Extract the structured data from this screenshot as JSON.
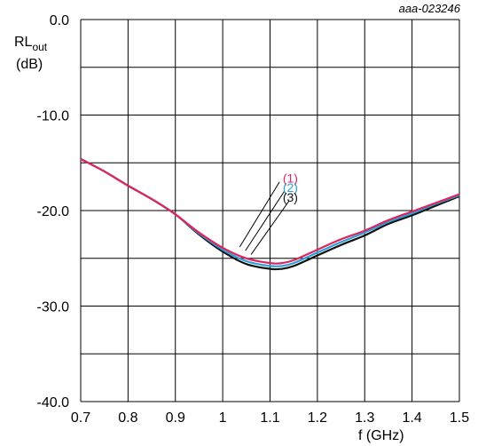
{
  "chart_data": {
    "type": "line",
    "code": "aaa-023246",
    "ylabel_main": "RL",
    "ylabel_sub": "out",
    "ylabel_unit": "(dB)",
    "xlabel": "f (GHz)",
    "xlim": [
      0.7,
      1.5
    ],
    "ylim": [
      -40,
      0
    ],
    "x_ticks": [
      0.7,
      0.8,
      0.9,
      1,
      1.1,
      1.2,
      1.3,
      1.4,
      1.5
    ],
    "x_tick_labels": [
      "0.7",
      "0.8",
      "0.9",
      "1",
      "1.1",
      "1.2",
      "1.3",
      "1.4",
      "1.5"
    ],
    "y_ticks": [
      0,
      -10,
      -20,
      -30,
      -40
    ],
    "y_tick_labels": [
      "0.0",
      "-10.0",
      "-20.0",
      "-30.0",
      "-40.0"
    ],
    "grid": true,
    "series": [
      {
        "name": "(1)",
        "color": "#e0245e",
        "x": [
          0.7,
          0.75,
          0.8,
          0.85,
          0.9,
          0.95,
          1.0,
          1.05,
          1.1,
          1.125,
          1.15,
          1.2,
          1.25,
          1.3,
          1.35,
          1.4,
          1.45,
          1.5
        ],
        "y": [
          -14.6,
          -15.9,
          -17.4,
          -18.8,
          -20.4,
          -22.3,
          -23.9,
          -25.0,
          -25.5,
          -25.5,
          -25.2,
          -24.1,
          -23.0,
          -22.1,
          -21.0,
          -20.1,
          -19.2,
          -18.3
        ]
      },
      {
        "name": "(2)",
        "color": "#2a9fd6",
        "x": [
          0.7,
          0.75,
          0.8,
          0.85,
          0.9,
          0.95,
          1.0,
          1.05,
          1.1,
          1.125,
          1.15,
          1.2,
          1.25,
          1.3,
          1.35,
          1.4,
          1.45,
          1.5
        ],
        "y": [
          -14.6,
          -15.9,
          -17.4,
          -18.8,
          -20.4,
          -22.4,
          -24.1,
          -25.3,
          -25.8,
          -25.8,
          -25.5,
          -24.4,
          -23.3,
          -22.3,
          -21.2,
          -20.3,
          -19.3,
          -18.4
        ]
      },
      {
        "name": "(3)",
        "color": "#111111",
        "x": [
          0.7,
          0.75,
          0.8,
          0.85,
          0.9,
          0.95,
          1.0,
          1.05,
          1.1,
          1.125,
          1.15,
          1.2,
          1.25,
          1.3,
          1.35,
          1.4,
          1.45,
          1.5
        ],
        "y": [
          -14.6,
          -15.9,
          -17.4,
          -18.8,
          -20.4,
          -22.5,
          -24.3,
          -25.6,
          -26.1,
          -26.1,
          -25.8,
          -24.7,
          -23.6,
          -22.6,
          -21.4,
          -20.5,
          -19.5,
          -18.5
        ]
      }
    ]
  }
}
